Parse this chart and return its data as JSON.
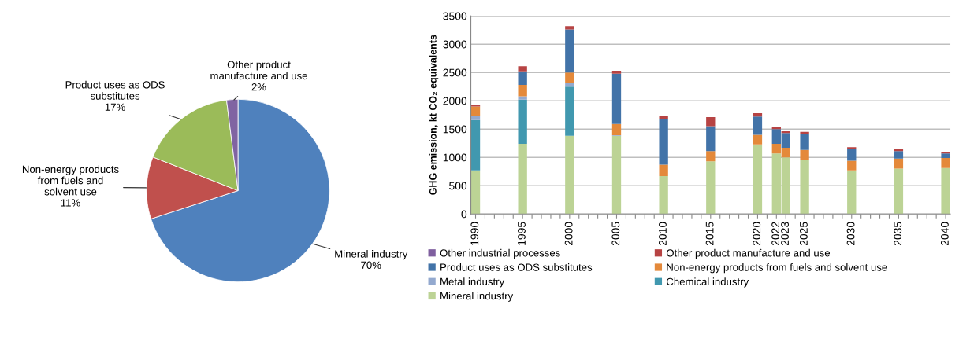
{
  "chart_data": [
    {
      "type": "pie",
      "categories": [
        "Mineral industry",
        "Non-energy products\nfrom fuels and\nsolvent use",
        "Product uses as ODS\nsubstitutes",
        "Other product\nmanufacture and use"
      ],
      "values": [
        70,
        11,
        17,
        2
      ],
      "value_labels": [
        "70%",
        "11%",
        "17%",
        "2%"
      ],
      "colors": [
        "#4f81bd",
        "#c0504d",
        "#9bbb59",
        "#8064a2"
      ]
    },
    {
      "type": "bar",
      "stacked": true,
      "ylabel": "GHG emission, kt CO₂ equivalents",
      "x": [
        1990,
        1995,
        2000,
        2005,
        2010,
        2015,
        2020,
        2022,
        2023,
        2025,
        2030,
        2035,
        2040
      ],
      "series": [
        {
          "name": "Mineral industry",
          "color": "#bcd395",
          "values": [
            770,
            1240,
            1380,
            1380,
            670,
            930,
            1230,
            1070,
            1000,
            960,
            770,
            800,
            810
          ]
        },
        {
          "name": "Chemical industry",
          "color": "#4198af",
          "values": [
            890,
            780,
            870,
            0,
            0,
            0,
            0,
            0,
            0,
            0,
            0,
            0,
            0
          ]
        },
        {
          "name": "Metal industry",
          "color": "#93a9cf",
          "values": [
            70,
            60,
            60,
            10,
            0,
            0,
            0,
            0,
            0,
            0,
            0,
            0,
            0
          ]
        },
        {
          "name": "Non-energy products from fuels and solvent use",
          "color": "#e4893a",
          "values": [
            170,
            200,
            190,
            200,
            200,
            180,
            170,
            170,
            170,
            170,
            170,
            180,
            180
          ]
        },
        {
          "name": "Product uses as ODS substitutes",
          "color": "#4273a8",
          "values": [
            0,
            240,
            760,
            890,
            810,
            440,
            320,
            260,
            260,
            290,
            210,
            130,
            80
          ]
        },
        {
          "name": "Other product manufacture and use",
          "color": "#b74343",
          "values": [
            30,
            90,
            60,
            50,
            60,
            160,
            60,
            40,
            30,
            30,
            30,
            30,
            30
          ]
        },
        {
          "name": "Other industrial processes",
          "color": "#7f5f9f",
          "values": [
            0,
            0,
            0,
            0,
            0,
            0,
            0,
            0,
            0,
            0,
            0,
            0,
            0
          ]
        }
      ],
      "xlim": [
        1989.5,
        2040.5
      ],
      "xticks": [
        1990,
        {
          "value": 1991,
          "label": null
        },
        {
          "value": 1992,
          "label": null
        },
        {
          "value": 1993,
          "label": null
        },
        {
          "value": 1994,
          "label": null
        },
        1995,
        {
          "value": 1996,
          "label": null
        },
        {
          "value": 1997,
          "label": null
        },
        {
          "value": 1998,
          "label": null
        },
        {
          "value": 1999,
          "label": null
        },
        2000,
        {
          "value": 2001,
          "label": null
        },
        {
          "value": 2002,
          "label": null
        },
        {
          "value": 2003,
          "label": null
        },
        {
          "value": 2004,
          "label": null
        },
        2005,
        {
          "value": 2006,
          "label": null
        },
        {
          "value": 2007,
          "label": null
        },
        {
          "value": 2008,
          "label": null
        },
        {
          "value": 2009,
          "label": null
        },
        2010,
        {
          "value": 2011,
          "label": null
        },
        {
          "value": 2012,
          "label": null
        },
        {
          "value": 2013,
          "label": null
        },
        {
          "value": 2014,
          "label": null
        },
        2015,
        {
          "value": 2016,
          "label": null
        },
        {
          "value": 2017,
          "label": null
        },
        {
          "value": 2018,
          "label": null
        },
        {
          "value": 2019,
          "label": null
        },
        2020,
        {
          "value": 2021,
          "label": null
        },
        2022,
        2023,
        {
          "value": 2024,
          "label": null
        },
        2025,
        {
          "value": 2026,
          "label": null
        },
        {
          "value": 2027,
          "label": null
        },
        {
          "value": 2028,
          "label": null
        },
        {
          "value": 2029,
          "label": null
        },
        2030,
        {
          "value": 2031,
          "label": null
        },
        {
          "value": 2032,
          "label": null
        },
        {
          "value": 2033,
          "label": null
        },
        {
          "value": 2034,
          "label": null
        },
        2035,
        {
          "value": 2036,
          "label": null
        },
        {
          "value": 2037,
          "label": null
        },
        {
          "value": 2038,
          "label": null
        },
        {
          "value": 2039,
          "label": null
        },
        2040
      ],
      "ylim": [
        0,
        3500
      ],
      "yticks": [
        0,
        500,
        1000,
        1500,
        2000,
        2500,
        3000,
        3500
      ],
      "grid": "y",
      "legend": "bottom"
    }
  ]
}
